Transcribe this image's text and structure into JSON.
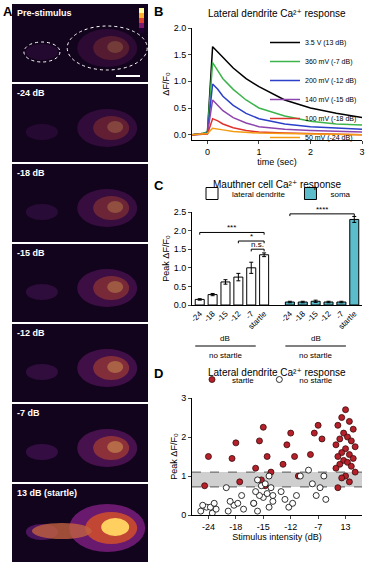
{
  "chart_data": [
    {
      "type": "image",
      "panel": "A",
      "labels": [
        "Pre-stimulus",
        "-24 dB",
        "-18 dB",
        "-15 dB",
        "-12 dB",
        "-7 dB",
        "13 dB (startle)"
      ]
    },
    {
      "type": "line",
      "panel": "B",
      "title": "Lateral dendrite Ca²⁺ response",
      "x_label": "time (sec)",
      "y_label": "ΔF/F₀",
      "x": [
        -0.3,
        -0.1,
        0,
        0.1,
        0.2,
        0.3,
        0.5,
        0.75,
        1,
        1.5,
        2,
        2.5,
        3
      ],
      "series": [
        {
          "name": "3.5 V (13 dB)",
          "color": "#000000",
          "values": [
            0,
            0.02,
            0.05,
            1.65,
            1.55,
            1.45,
            1.25,
            1.05,
            0.9,
            0.65,
            0.5,
            0.4,
            0.32
          ]
        },
        {
          "name": "360 mV (-7 dB)",
          "color": "#3cb44b",
          "values": [
            0,
            0.02,
            0.05,
            1.35,
            1.2,
            1.05,
            0.85,
            0.65,
            0.5,
            0.35,
            0.25,
            0.2,
            0.18
          ]
        },
        {
          "name": "200 mV (-12 dB)",
          "color": "#2b3fc9",
          "values": [
            0,
            0.01,
            0.03,
            0.95,
            0.85,
            0.72,
            0.55,
            0.4,
            0.3,
            0.2,
            0.15,
            0.12,
            0.1
          ]
        },
        {
          "name": "140 mV (-15 dB)",
          "color": "#8e44ad",
          "values": [
            0,
            0.01,
            0.02,
            0.65,
            0.55,
            0.45,
            0.32,
            0.22,
            0.15,
            0.1,
            0.08,
            0.06,
            0.05
          ]
        },
        {
          "name": "100 mV (-18 dB)",
          "color": "#e0322d",
          "values": [
            0,
            0,
            0.01,
            0.3,
            0.26,
            0.2,
            0.13,
            0.08,
            0.05,
            0.03,
            0.02,
            0.01,
            0
          ]
        },
        {
          "name": "50 mV (-24 dB)",
          "color": "#f39c12",
          "values": [
            0,
            0.01,
            0.02,
            0.12,
            0.11,
            0.09,
            0.06,
            0.04,
            0.03,
            0.02,
            0.01,
            0.01,
            0
          ]
        }
      ],
      "xlim": [
        -0.3,
        3
      ],
      "xticks": [
        0,
        1,
        2,
        3
      ],
      "ylim": [
        -0.1,
        2
      ],
      "yticks": [
        {
          "value": 0,
          "label": "0.0"
        },
        0.5,
        {
          "value": 1,
          "label": "1.0"
        },
        1.5,
        {
          "value": 2,
          "label": "2.0"
        }
      ],
      "grid": false,
      "legend": "upper right"
    },
    {
      "type": "bar",
      "panel": "C",
      "title": "Mauthner cell Ca²⁺ response",
      "y_label": "Peak ΔF/F₀",
      "categories": [
        "-24",
        "-18",
        "-15",
        "-12",
        "-7",
        "startle",
        null,
        "-24",
        "-18",
        "-15",
        "-12",
        "-7",
        "startle"
      ],
      "series": [
        {
          "name": "lateral dendrite",
          "color": "#ffffff",
          "values": [
            0.15,
            0.28,
            0.62,
            0.75,
            1.0,
            1.35,
            null,
            null,
            null,
            null,
            null,
            null,
            null
          ],
          "errors": [
            0.02,
            0.03,
            0.06,
            0.1,
            0.15,
            0.05,
            null,
            null,
            null,
            null,
            null,
            null,
            null
          ]
        },
        {
          "name": "soma",
          "color": "#5bbccc",
          "values": [
            null,
            null,
            null,
            null,
            null,
            null,
            null,
            0.08,
            0.08,
            0.1,
            0.08,
            0.08,
            2.3
          ],
          "errors": [
            null,
            null,
            null,
            null,
            null,
            null,
            null,
            0.02,
            0.02,
            0.03,
            0.02,
            0.02,
            0.08
          ]
        }
      ],
      "ylim": [
        0,
        2.5
      ],
      "yticks": [
        {
          "value": 0,
          "label": "0.0"
        },
        0.5,
        {
          "value": 1,
          "label": "1.0"
        },
        1.5,
        {
          "value": 2,
          "label": "2.0"
        },
        2.5
      ],
      "annotations": [
        {
          "text": "***",
          "x": [
            0,
            5
          ],
          "y": 1.95
        },
        {
          "text": "*",
          "x": [
            3,
            5
          ],
          "y": 1.72
        },
        {
          "text": "n.s.",
          "x": [
            4,
            5
          ],
          "y": 1.5
        },
        {
          "text": "****",
          "x": [
            7,
            12
          ],
          "y": 2.45
        }
      ],
      "unit_labels": [
        {
          "text": "dB",
          "x": [
            0,
            4
          ]
        },
        {
          "text": "dB",
          "x": [
            7,
            11
          ]
        }
      ],
      "group_labels": [
        {
          "text": "no startle",
          "x": [
            0,
            4
          ]
        },
        {
          "text": "no startle",
          "x": [
            7,
            11
          ]
        }
      ],
      "grid": false,
      "legend": "top"
    },
    {
      "type": "scatter",
      "panel": "D",
      "title": "Lateral dendrite Ca²⁺ response",
      "x_label": "Stimulus intensity (dB)",
      "y_label": "Peak ΔF/F₀",
      "categories": [
        "-24",
        "-18",
        "-15",
        "-12",
        "-7",
        "13"
      ],
      "series": [
        {
          "name": "startle",
          "color": "#b5202a",
          "marker": "filled",
          "x": [
            "-24",
            "-24",
            "-18",
            "-18",
            "-18",
            "-15",
            "-15",
            "-15",
            "-15",
            "-15",
            "-15",
            "-15",
            "-12",
            "-12",
            "-12",
            "-12",
            "-12",
            "-7",
            "-7",
            "-7",
            "-7",
            "13",
            "13",
            "13",
            "13",
            "13",
            "13",
            "13",
            "13",
            "13",
            "13",
            "13",
            "13",
            "13",
            "13",
            "13",
            "13",
            "13",
            "13",
            "13",
            "13",
            "13",
            "13",
            "13",
            "13",
            "13",
            "13"
          ],
          "values": [
            1.5,
            0.75,
            1.85,
            1.45,
            0.85,
            2.25,
            1.9,
            1.5,
            1.2,
            1.1,
            0.9,
            0.75,
            2.1,
            1.8,
            1.5,
            1.3,
            1.0,
            2.3,
            2.1,
            1.95,
            1.55,
            2.7,
            2.5,
            2.4,
            2.3,
            2.2,
            2.1,
            2.0,
            1.95,
            1.9,
            1.8,
            1.75,
            1.7,
            1.6,
            1.55,
            1.5,
            1.45,
            1.4,
            1.35,
            1.3,
            1.25,
            1.2,
            1.1,
            1.0,
            0.95,
            0.85,
            0.7
          ]
        },
        {
          "name": "no startle",
          "color": "#ffffff",
          "marker": "open",
          "x": [
            "-24",
            "-24",
            "-24",
            "-24",
            "-24",
            "-24",
            "-24",
            "-18",
            "-18",
            "-18",
            "-18",
            "-18",
            "-18",
            "-18",
            "-15",
            "-15",
            "-15",
            "-15",
            "-15",
            "-15",
            "-15",
            "-15",
            "-15",
            "-15",
            "-15",
            "-15",
            "-15",
            "-15",
            "-15",
            "-12",
            "-12",
            "-12",
            "-12",
            "-12",
            "-12",
            "-7",
            "-7",
            "-7",
            "-7",
            "-7",
            "-7"
          ],
          "values": [
            0.05,
            0.1,
            0.15,
            0.2,
            0.2,
            0.25,
            0.3,
            0.1,
            0.15,
            0.25,
            0.3,
            0.35,
            0.5,
            0.7,
            0.1,
            0.2,
            0.3,
            0.35,
            0.45,
            0.5,
            0.55,
            0.6,
            0.7,
            0.75,
            0.8,
            0.9,
            1.0,
            0.3,
            0.5,
            0.2,
            0.3,
            0.4,
            0.5,
            0.6,
            1.0,
            0.4,
            0.5,
            0.7,
            0.8,
            1.0,
            1.15
          ]
        }
      ],
      "ylim": [
        0,
        3
      ],
      "yticks": [
        0,
        1,
        2,
        3
      ],
      "threshold_band": [
        0.72,
        1.1
      ],
      "grid": false,
      "legend": "top"
    }
  ]
}
